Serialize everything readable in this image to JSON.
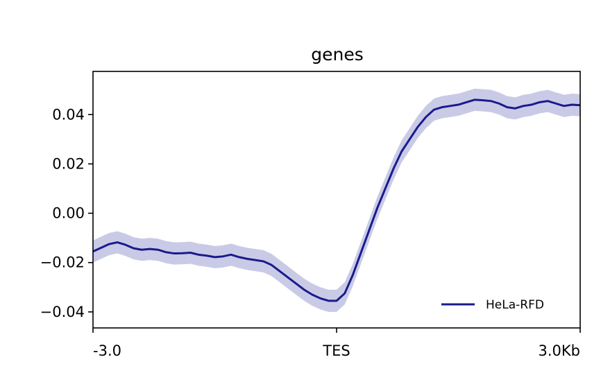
{
  "chart_data": {
    "type": "line",
    "title": "genes",
    "xlabel": "",
    "ylabel": "",
    "x_ticks": [
      {
        "label": "-3.0",
        "value": -3.0
      },
      {
        "label": "TES",
        "value": 0.0
      },
      {
        "label": "3.0Kb",
        "value": 3.0
      }
    ],
    "y_ticks": [
      {
        "label": "−0.04",
        "value": -0.04
      },
      {
        "label": "−0.02",
        "value": -0.02
      },
      {
        "label": "0.00",
        "value": 0.0
      },
      {
        "label": "0.02",
        "value": 0.02
      },
      {
        "label": "0.04",
        "value": 0.04
      }
    ],
    "xlim": [
      -3.0,
      3.0
    ],
    "ylim": [
      -0.0465,
      0.0575
    ],
    "grid": false,
    "legend_position": "bottom-right",
    "band_halfwidth": 0.0045,
    "series": [
      {
        "name": "HeLa-RFD",
        "color": "#1a1a8c",
        "band_color": "#c9cae6",
        "x": [
          -3.0,
          -2.9,
          -2.8,
          -2.7,
          -2.6,
          -2.5,
          -2.4,
          -2.3,
          -2.2,
          -2.1,
          -2.0,
          -1.9,
          -1.8,
          -1.7,
          -1.6,
          -1.5,
          -1.4,
          -1.3,
          -1.2,
          -1.1,
          -1.0,
          -0.9,
          -0.8,
          -0.7,
          -0.6,
          -0.5,
          -0.4,
          -0.3,
          -0.2,
          -0.1,
          0.0,
          0.1,
          0.2,
          0.3,
          0.4,
          0.5,
          0.6,
          0.7,
          0.8,
          0.9,
          1.0,
          1.1,
          1.2,
          1.3,
          1.4,
          1.5,
          1.6,
          1.7,
          1.8,
          1.9,
          2.0,
          2.1,
          2.2,
          2.3,
          2.4,
          2.5,
          2.6,
          2.7,
          2.8,
          2.9,
          3.0
        ],
        "values": [
          -0.0155,
          -0.014,
          -0.0125,
          -0.0118,
          -0.0128,
          -0.0142,
          -0.0148,
          -0.0145,
          -0.0148,
          -0.0158,
          -0.0163,
          -0.0162,
          -0.016,
          -0.0168,
          -0.0172,
          -0.0178,
          -0.0175,
          -0.0168,
          -0.0178,
          -0.0185,
          -0.019,
          -0.0195,
          -0.021,
          -0.0235,
          -0.026,
          -0.0285,
          -0.031,
          -0.033,
          -0.0345,
          -0.0355,
          -0.0355,
          -0.0325,
          -0.025,
          -0.016,
          -0.007,
          0.002,
          0.01,
          0.018,
          0.025,
          0.03,
          0.035,
          0.039,
          0.042,
          0.043,
          0.0435,
          0.044,
          0.045,
          0.046,
          0.0458,
          0.0455,
          0.0445,
          0.043,
          0.0425,
          0.0435,
          0.044,
          0.045,
          0.0455,
          0.0445,
          0.0435,
          0.044,
          0.0438
        ]
      }
    ]
  }
}
